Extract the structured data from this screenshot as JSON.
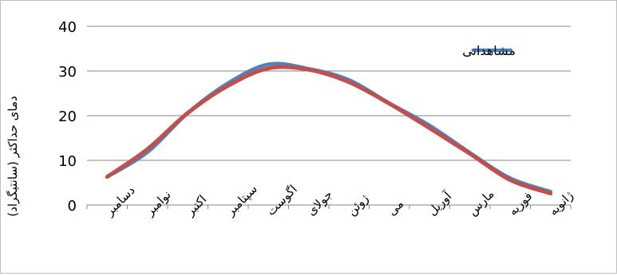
{
  "chart_data": {
    "type": "line",
    "ylabel": "دمای حداکثر (سانتیگراد)",
    "xlabel": "",
    "ylim": [
      0,
      40
    ],
    "yticks": [
      0,
      10,
      20,
      30,
      40
    ],
    "grid": true,
    "legend_position": "top-right",
    "categories": [
      "دسامبر",
      "نوامبر",
      "اکتبر",
      "سپتامبر",
      "اگوست",
      "جولای",
      "ژوئن",
      "می",
      "آوریل",
      "مارس",
      "فوریه",
      "ژانویه"
    ],
    "series": [
      {
        "name": "مشاهداتی",
        "color": "#4f81bd",
        "values": [
          6.3,
          11.8,
          20.6,
          27.3,
          31.5,
          30.5,
          28.0,
          22.8,
          17.8,
          11.7,
          6.0,
          3.0
        ]
      },
      {
        "name": "",
        "color": "#c0504d",
        "values": [
          6.3,
          12.5,
          20.6,
          26.7,
          30.6,
          30.3,
          27.5,
          22.7,
          17.2,
          11.5,
          5.6,
          2.6
        ]
      }
    ]
  }
}
